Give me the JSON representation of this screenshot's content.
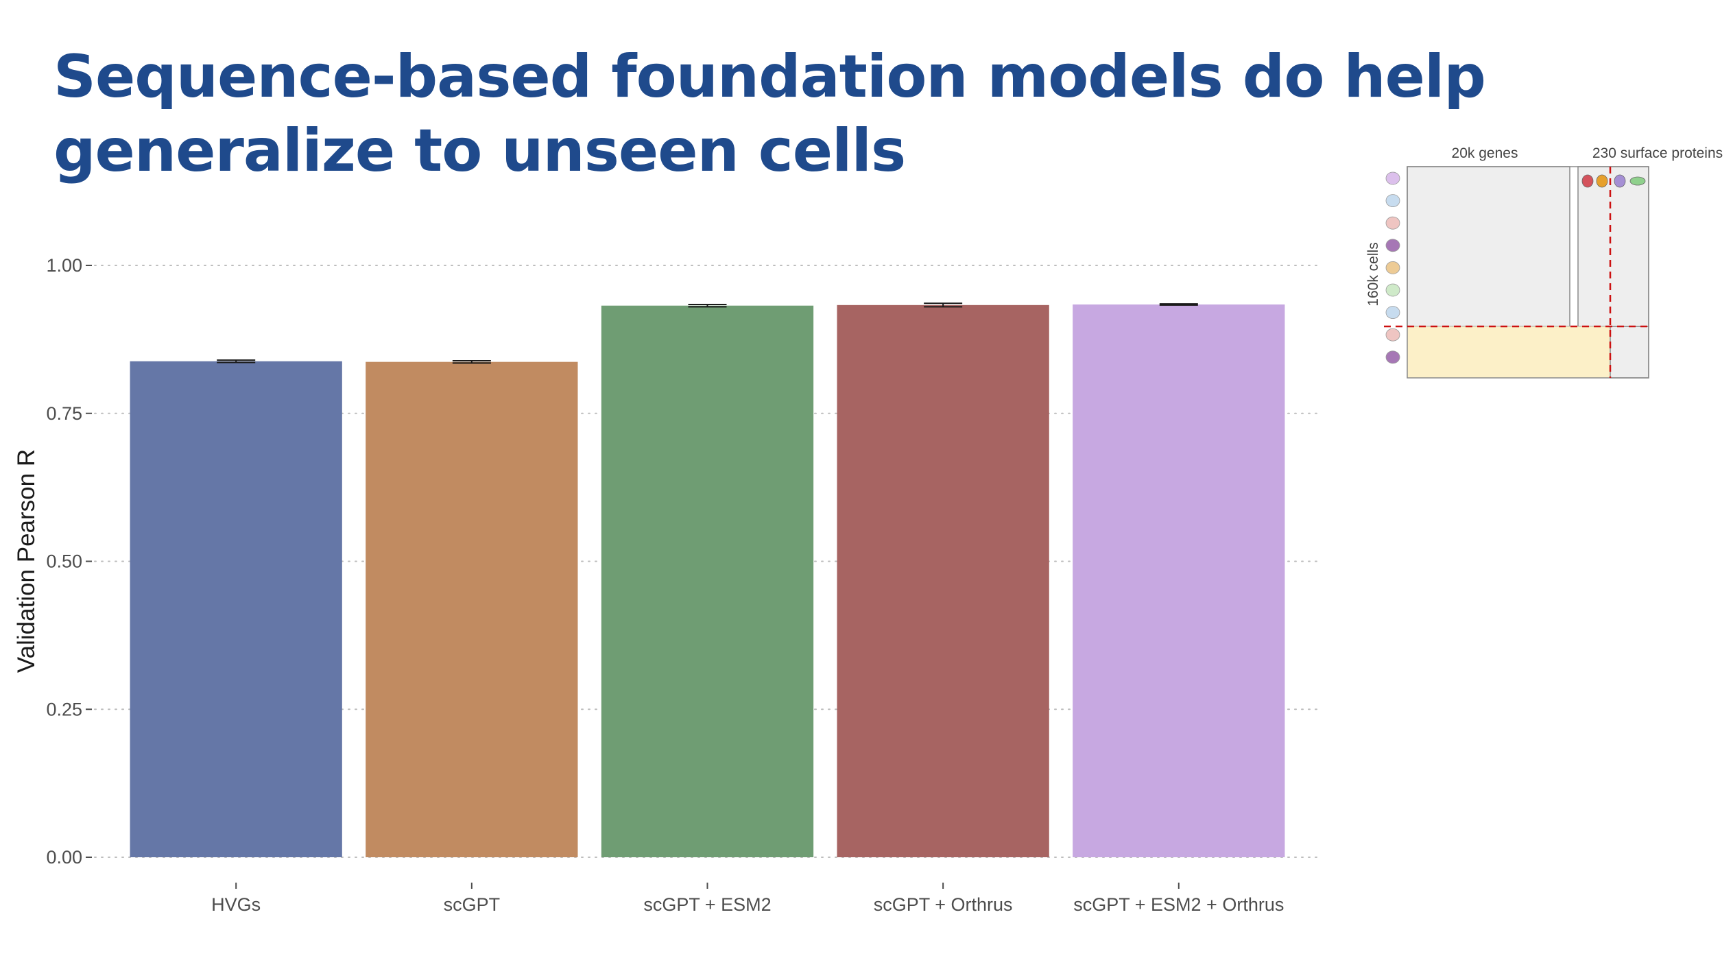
{
  "slide": {
    "title": "Sequence-based foundation models do help generalize to unseen cells"
  },
  "chart_data": {
    "type": "bar",
    "categories": [
      "HVGs",
      "scGPT",
      "scGPT + ESM2",
      "scGPT + Orthrus",
      "scGPT + ESM2 + Orthrus"
    ],
    "values": [
      0.838,
      0.837,
      0.932,
      0.933,
      0.934
    ],
    "errors": [
      0.002,
      0.002,
      0.002,
      0.003,
      0.001
    ],
    "colors": [
      "#6577a7",
      "#c18b61",
      "#6f9d73",
      "#a76462",
      "#c7a8e1"
    ],
    "xlabel": "",
    "ylabel": "Validation Pearson R",
    "ylim": [
      0,
      1.0
    ],
    "yticks": [
      0.0,
      0.25,
      0.5,
      0.75,
      1.0
    ],
    "ytick_labels": [
      "0.00",
      "0.25",
      "0.50",
      "0.75",
      "1.00"
    ],
    "grid": "horizontal dotted",
    "legend": "none"
  },
  "inset": {
    "genes_label": "20k genes",
    "proteins_label": "230 surface proteins",
    "cells_label": "160k cells",
    "cell_dot_colors": [
      "#dcc0ec",
      "#c7dcef",
      "#efc5c2",
      "#a677b5",
      "#edcb95",
      "#cfeac9",
      "#c7dcef",
      "#efc5c2",
      "#a677b5"
    ],
    "protein_icon_colors": [
      "#d4525c",
      "#e6a02c",
      "#a58fd4",
      "#8fd08c"
    ],
    "highlight_color": "#fcf0c8",
    "split_line_color": "#cc1111"
  }
}
